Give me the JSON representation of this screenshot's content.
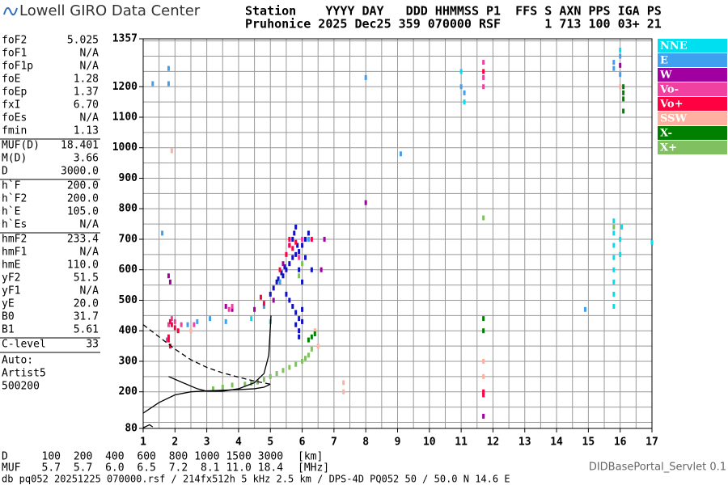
{
  "logo": "Lowell GIRO Data Center",
  "header": {
    "line1": "Station    YYYY DAY   DDD HHMMSS P1  FFS S AXN PPS IGA PS",
    "line2": "Pruhonice 2025 Dec25 359 070000 RSF      1 713 100 03+ 21"
  },
  "params": [
    [
      {
        "label": "foF2",
        "value": "5.025"
      },
      {
        "label": "foF1",
        "value": "N/A"
      },
      {
        "label": "foF1p",
        "value": "N/A"
      },
      {
        "label": "foE",
        "value": "1.28"
      },
      {
        "label": "foEp",
        "value": "1.37"
      },
      {
        "label": "fxI",
        "value": "6.70"
      },
      {
        "label": "foEs",
        "value": "N/A"
      },
      {
        "label": "fmin",
        "value": "1.13"
      }
    ],
    [
      {
        "label": "MUF(D)",
        "value": "18.401"
      },
      {
        "label": "M(D)",
        "value": "3.66"
      },
      {
        "label": "D",
        "value": "3000.0"
      }
    ],
    [
      {
        "label": "h`F",
        "value": "200.0"
      },
      {
        "label": "h`F2",
        "value": "200.0"
      },
      {
        "label": "h`E",
        "value": "105.0"
      },
      {
        "label": "h`Es",
        "value": "N/A"
      }
    ],
    [
      {
        "label": "hmF2",
        "value": "233.4"
      },
      {
        "label": "hmF1",
        "value": "N/A"
      },
      {
        "label": "hmE",
        "value": "110.0"
      },
      {
        "label": "yF2",
        "value": "51.5"
      },
      {
        "label": "yF1",
        "value": "N/A"
      },
      {
        "label": "yE",
        "value": "20.0"
      },
      {
        "label": "B0",
        "value": "31.7"
      },
      {
        "label": "B1",
        "value": "5.61"
      }
    ],
    [
      {
        "label": "C-level",
        "value": "33"
      }
    ]
  ],
  "notes": [
    "Auto:",
    "Artist5",
    "500200"
  ],
  "muf_table": {
    "d_label": "D",
    "muf_label": "MUF",
    "d": [
      "100",
      "200",
      "400",
      "600",
      "800",
      "1000",
      "1500",
      "3000"
    ],
    "muf": [
      "5.7",
      "5.7",
      "6.0",
      "6.5",
      "7.2",
      "8.1",
      "11.0",
      "18.4"
    ],
    "d_unit": "[km]",
    "muf_unit": "[MHz]"
  },
  "servlet": "DIDBasePortal_Servlet 0.1",
  "footer": "db pq052 20251225 070000.rsf / 214fx512h 5 kHz 2.5 km / DPS-4D PQ052 50 / 50.0 N 14.6 E",
  "chart_data": {
    "type": "scatter",
    "xlim": [
      1,
      17
    ],
    "xticks": [
      1,
      2,
      3,
      4,
      5,
      6,
      7,
      8,
      9,
      10,
      11,
      12,
      13,
      14,
      15,
      16,
      17
    ],
    "xminor": [
      1.5,
      2.5,
      3.5,
      4.5,
      5.5,
      6.5,
      7.5,
      8.5,
      9.5,
      10.5,
      11.5,
      12.5,
      13.5,
      14.5,
      15.5,
      16.5
    ],
    "ylim": [
      80,
      1357
    ],
    "yticks": [
      80,
      200,
      300,
      400,
      500,
      600,
      700,
      800,
      900,
      1000,
      1100,
      1200,
      1357
    ],
    "yminor": [
      100,
      150,
      250,
      350,
      450,
      550,
      650,
      750,
      850,
      950,
      1050,
      1150,
      1250,
      1300,
      1350
    ],
    "grid": true,
    "series": [
      {
        "color": "#1010c0",
        "x": [
          5.0,
          5.1,
          5.2,
          5.3,
          5.4,
          5.5,
          5.6,
          5.7,
          5.8,
          5.9,
          6.0,
          6.1,
          6.2,
          5.5,
          5.6,
          5.7,
          5.8,
          5.9,
          6.0,
          5.8,
          5.9,
          5.9,
          6.0,
          5.6,
          5.7,
          5.75,
          5.8,
          5.85,
          5.9,
          6.0,
          6.1,
          5.45,
          5.35,
          5.25,
          6.3
        ],
        "y": [
          520,
          540,
          560,
          560,
          580,
          600,
          620,
          640,
          650,
          660,
          680,
          700,
          720,
          520,
          500,
          480,
          460,
          440,
          470,
          420,
          400,
          380,
          430,
          680,
          700,
          720,
          740,
          680,
          600,
          560,
          640,
          610,
          590,
          570,
          600
        ]
      },
      {
        "name": "NNE",
        "color": "#00dff0",
        "x": [
          15.8,
          15.8,
          15.8,
          15.8,
          15.8,
          15.8,
          15.8,
          15.8,
          16.0,
          16.0,
          16.05,
          17.0,
          11.0,
          11.1,
          4.4,
          5.0,
          16.0
        ],
        "y": [
          480,
          520,
          560,
          600,
          640,
          680,
          720,
          760,
          650,
          700,
          740,
          690,
          1250,
          1150,
          440,
          430,
          1320
        ]
      },
      {
        "name": "E",
        "color": "#3fa0f0",
        "x": [
          1.8,
          1.8,
          1.3,
          1.6,
          15.8,
          15.8,
          16.0,
          16.0,
          14.9,
          11.1,
          11.0,
          8.0,
          9.1,
          2.4,
          2.7,
          3.1,
          3.6,
          6.2,
          5.3,
          4.8
        ],
        "y": [
          1210,
          1260,
          1210,
          720,
          1260,
          1280,
          1240,
          1300,
          470,
          1180,
          1200,
          1230,
          980,
          420,
          430,
          440,
          430,
          700,
          560,
          480
        ]
      },
      {
        "name": "W",
        "color": "#a000a0",
        "x": [
          1.8,
          1.85,
          3.8,
          3.6,
          4.5,
          5.1,
          5.4,
          6.6,
          6.7,
          8.0,
          16.0,
          11.7
        ],
        "y": [
          580,
          560,
          470,
          480,
          470,
          500,
          620,
          600,
          700,
          820,
          1270,
          120
        ]
      },
      {
        "name": "Vo-",
        "color": "#f040a0",
        "x": [
          1.75,
          1.8,
          1.9,
          2.0,
          2.2,
          2.6,
          11.7,
          11.7,
          11.7,
          5.9,
          6.0,
          3.7,
          3.8
        ],
        "y": [
          370,
          420,
          440,
          430,
          420,
          420,
          1200,
          1230,
          1280,
          640,
          700,
          470,
          480
        ]
      },
      {
        "name": "Vo+",
        "color": "#ff0040",
        "x": [
          1.8,
          1.8,
          1.85,
          1.85,
          1.9,
          2.0,
          2.1,
          5.6,
          5.6,
          5.7,
          5.8,
          5.5,
          5.3,
          11.7,
          11.7,
          11.7,
          4.7,
          4.8,
          6.3
        ],
        "y": [
          370,
          380,
          350,
          430,
          420,
          410,
          400,
          700,
          680,
          670,
          690,
          650,
          600,
          200,
          190,
          1250,
          510,
          490,
          700
        ]
      },
      {
        "name": "SSW",
        "color": "#ffb0a0",
        "x": [
          1.9,
          2.5,
          7.3,
          7.3,
          6.4,
          6.5,
          16.0,
          11.7,
          11.7
        ],
        "y": [
          990,
          400,
          230,
          200,
          400,
          350,
          1200,
          300,
          250
        ]
      },
      {
        "name": "X-",
        "color": "#008000",
        "x": [
          16.1,
          16.1,
          16.1,
          16.1,
          11.7,
          11.7,
          6.4,
          6.3,
          6.2
        ],
        "y": [
          1160,
          1180,
          1120,
          1200,
          400,
          440,
          390,
          380,
          370
        ]
      },
      {
        "name": "X+",
        "color": "#80c060",
        "x": [
          4.2,
          4.4,
          4.6,
          4.8,
          5.0,
          5.2,
          5.4,
          5.6,
          5.8,
          6.0,
          6.1,
          6.2,
          6.3,
          3.8,
          3.5,
          3.2,
          11.7,
          15.8,
          6.0,
          5.9
        ],
        "y": [
          225,
          228,
          232,
          240,
          250,
          260,
          270,
          280,
          290,
          300,
          310,
          320,
          340,
          222,
          215,
          210,
          770,
          740,
          620,
          580
        ]
      }
    ],
    "traces": [
      {
        "dashed": false,
        "x": [
          1.0,
          1.5,
          2.0,
          2.5,
          3.0,
          3.5,
          4.0,
          4.5,
          4.8,
          5.0
        ],
        "y": [
          130,
          165,
          190,
          200,
          203,
          205,
          207,
          210,
          215,
          225
        ]
      },
      {
        "dashed": false,
        "x": [
          1.8,
          2.2,
          2.7,
          3.0,
          3.5,
          4.0,
          4.5,
          4.8,
          4.95,
          5.02
        ],
        "y": [
          250,
          232,
          210,
          202,
          202,
          210,
          230,
          260,
          320,
          450
        ]
      },
      {
        "dashed": true,
        "x": [
          1.0,
          1.5,
          2.0,
          2.5,
          3.0,
          3.5,
          4.0,
          4.5,
          5.0
        ],
        "y": [
          420,
          380,
          340,
          305,
          280,
          262,
          248,
          235,
          225
        ]
      },
      {
        "dashed": false,
        "x": [
          1.0,
          1.2,
          1.3
        ],
        "y": [
          82,
          92,
          85
        ]
      }
    ]
  }
}
